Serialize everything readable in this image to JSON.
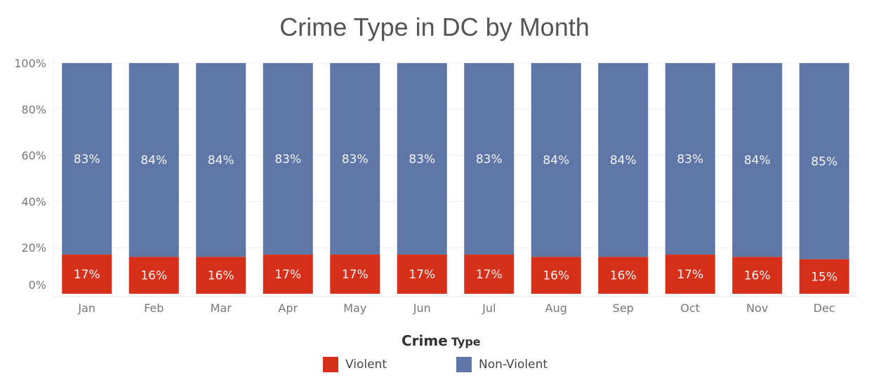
{
  "chart_data": {
    "type": "bar",
    "stacked": true,
    "normalized": true,
    "title": "Crime Type in DC by Month",
    "categories": [
      "Jan",
      "Feb",
      "Mar",
      "Apr",
      "May",
      "Jun",
      "Jul",
      "Aug",
      "Sep",
      "Oct",
      "Nov",
      "Dec"
    ],
    "series": [
      {
        "name": "Violent",
        "color": "#d6301a",
        "values": [
          17,
          16,
          16,
          17,
          17,
          17,
          17,
          16,
          16,
          17,
          16,
          15
        ]
      },
      {
        "name": "Non-Violent",
        "color": "#5f77a7",
        "values": [
          83,
          84,
          84,
          83,
          83,
          83,
          83,
          84,
          84,
          83,
          84,
          85
        ]
      }
    ],
    "ylim": [
      0,
      100
    ],
    "yticks": [
      "0%",
      "20%",
      "40%",
      "60%",
      "80%",
      "100%"
    ],
    "data_label_suffix": "%",
    "grid": true,
    "legend": {
      "title_main": "Crime",
      "title_sub": "Type",
      "placement": "bottom"
    }
  }
}
